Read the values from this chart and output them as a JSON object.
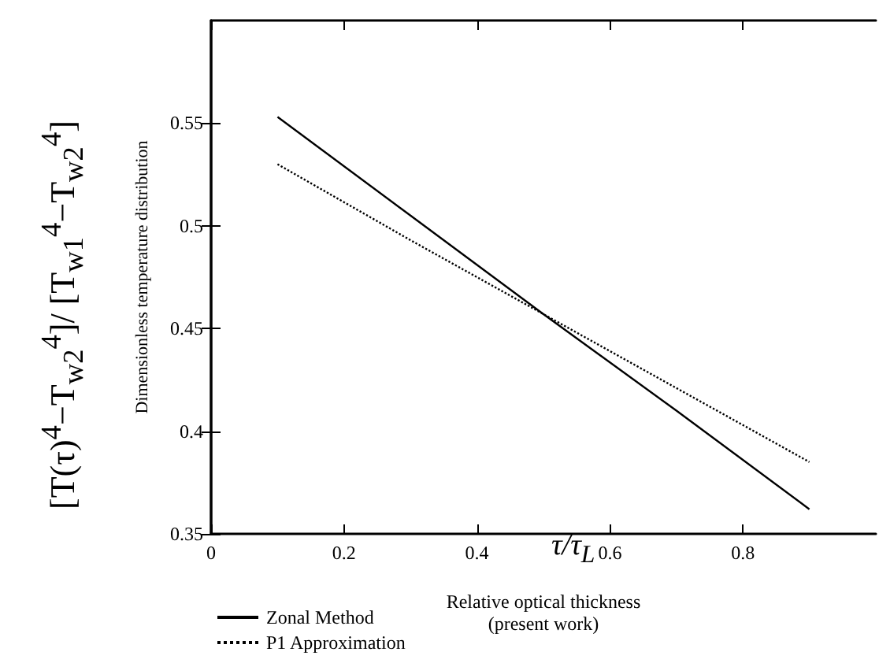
{
  "chart_data": {
    "type": "line",
    "xlabel": "Relative optical thickness\n(present work)",
    "ylabel": "Dimensionless temperature distribution",
    "annotations": [
      "[T(τ)$^{4}$−T$_{w2}$$^{4}$]/ [T$_{w1}$$^{4}$−T$_{w2}$$^{4}$]",
      "τ/τ$_{L}$"
    ],
    "x": [
      0.1,
      0.3,
      0.5,
      0.7,
      0.9
    ],
    "series": [
      {
        "name": "Zonal Method",
        "color": "#000000",
        "line_style": "solid",
        "values": [
          0.553,
          0.505,
          0.457,
          0.41,
          0.362
        ]
      },
      {
        "name": "P1 Approximation",
        "color": "#000000",
        "line_style": "dotted",
        "values": [
          0.53,
          0.493,
          0.457,
          0.421,
          0.385
        ]
      }
    ],
    "xlim": [
      0,
      1
    ],
    "xticks": [
      0,
      0.2,
      0.4,
      0.6,
      0.8
    ],
    "ylim": [
      0.35,
      0.6
    ],
    "yticks": [
      0.35,
      0.4,
      0.45,
      0.5,
      0.55
    ],
    "grid": false,
    "legend": "bottom left",
    "marker": "none"
  }
}
